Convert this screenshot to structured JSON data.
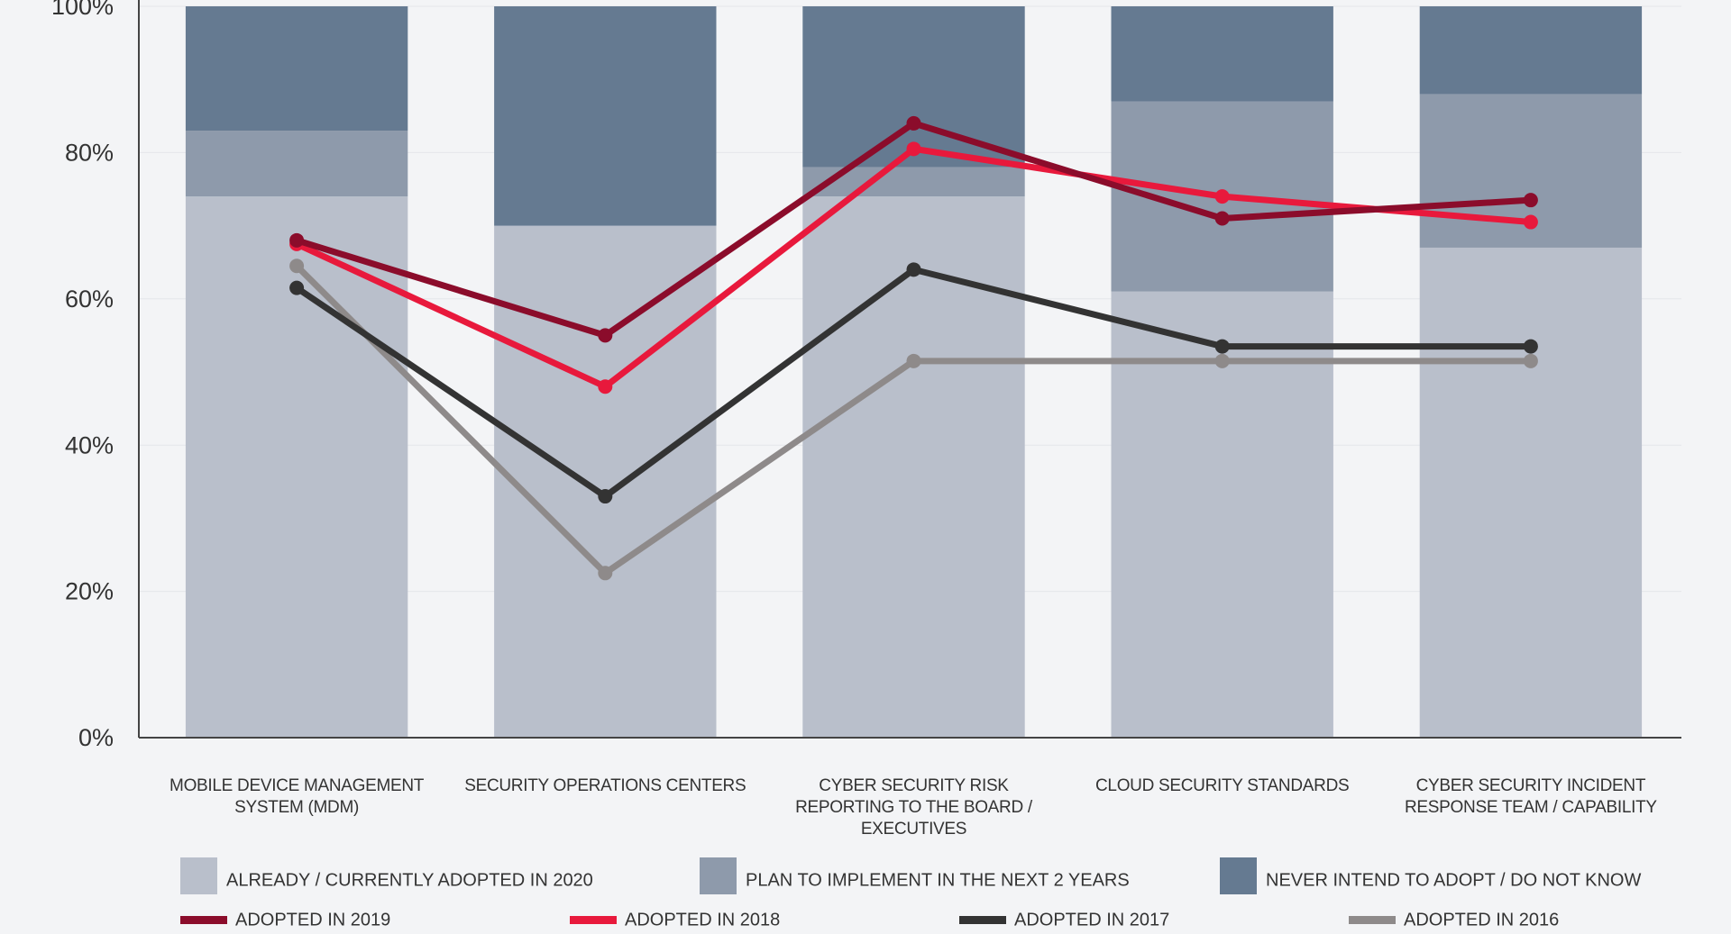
{
  "chart_data": {
    "type": "bar",
    "stacked": true,
    "categories": [
      "MOBILE DEVICE MANAGEMENT SYSTEM (MDM)",
      "SECURITY OPERATIONS CENTERS",
      "CYBER SECURITY RISK REPORTING TO THE BOARD / EXECUTIVES",
      "CLOUD SECURITY STANDARDS",
      "CYBER SECURITY INCIDENT RESPONSE TEAM / CAPABILITY"
    ],
    "series": [
      {
        "name": "ALREADY / CURRENTLY ADOPTED IN 2020",
        "type": "bar",
        "color": "#b9bfcb",
        "values": [
          74,
          70,
          74,
          61,
          67
        ]
      },
      {
        "name": "PLAN TO IMPLEMENT IN THE NEXT 2 YEARS",
        "type": "bar",
        "color": "#8e9aab",
        "values": [
          9,
          0,
          4,
          26,
          21
        ]
      },
      {
        "name": "NEVER INTEND TO ADOPT / DO NOT KNOW",
        "type": "bar",
        "color": "#657a91",
        "values": [
          17,
          30,
          22,
          13,
          12
        ]
      },
      {
        "name": "ADOPTED IN 2019",
        "type": "line",
        "color": "#8b0c2b",
        "values": [
          68,
          55,
          84,
          71,
          73.5
        ]
      },
      {
        "name": "ADOPTED IN 2018",
        "type": "line",
        "color": "#e8193c",
        "values": [
          67.5,
          48,
          80.5,
          74,
          70.5
        ]
      },
      {
        "name": "ADOPTED IN 2017",
        "type": "line",
        "color": "#333333",
        "values": [
          61.5,
          33,
          64,
          53.5,
          53.5
        ]
      },
      {
        "name": "ADOPTED IN 2016",
        "type": "line",
        "color": "#8e8a8a",
        "values": [
          64.5,
          22.5,
          51.5,
          51.5,
          51.5
        ]
      }
    ],
    "ylim": [
      0,
      100
    ],
    "yticks": [
      {
        "value": 0,
        "label": "0%"
      },
      {
        "value": 20,
        "label": "20%"
      },
      {
        "value": 40,
        "label": "40%"
      },
      {
        "value": 60,
        "label": "60%"
      },
      {
        "value": 80,
        "label": "80%"
      },
      {
        "value": 100,
        "label": "100%"
      }
    ],
    "grid": true
  }
}
